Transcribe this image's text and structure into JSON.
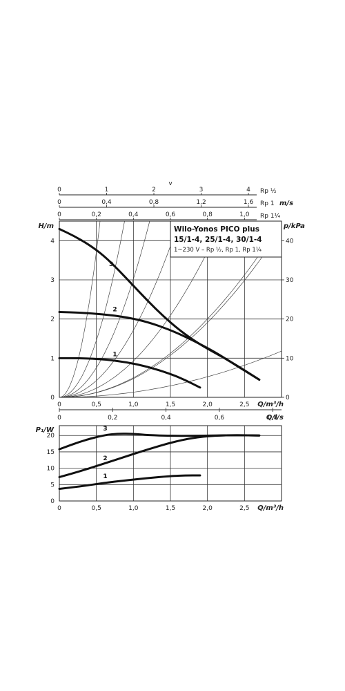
{
  "chart_data": [
    {
      "type": "line",
      "name": "pump-head-curves",
      "legend": {
        "title": "Wilo-Yonos PICO plus",
        "subtitle": "15/1-4, 25/1-4, 30/1-4",
        "note": "1~230 V – Rp ½, Rp 1, Rp 1¼",
        "placement": "top-right"
      },
      "xlabel": "Q/m³/h",
      "ylabel": "H/m",
      "y2label": "p/kPa",
      "xlim": [
        0,
        3.0
      ],
      "ylim": [
        0,
        4.5
      ],
      "y2lim": [
        0,
        45
      ],
      "xticks": [
        "0",
        "0,5",
        "1,0",
        "1,5",
        "2,0",
        "2,5"
      ],
      "xtick_values": [
        0,
        0.5,
        1.0,
        1.5,
        2.0,
        2.5
      ],
      "yticks": [
        "0",
        "1",
        "2",
        "3",
        "4"
      ],
      "ytick_values": [
        0,
        1,
        2,
        3,
        4
      ],
      "y2ticks": [
        "0",
        "10",
        "20",
        "30",
        "40"
      ],
      "y2tick_values": [
        0,
        10,
        20,
        30,
        40
      ],
      "top_axes": [
        {
          "label": "Rp ½",
          "ticks": [
            "0",
            "1",
            "2",
            "3",
            "4"
          ],
          "tick_values": [
            0,
            1,
            2,
            3,
            4
          ],
          "max": 4.7
        },
        {
          "label": "Rp 1",
          "unit": "m/s",
          "ticks": [
            "0",
            "0,4",
            "0,8",
            "1,2",
            "1,6"
          ],
          "tick_values": [
            0,
            0.4,
            0.8,
            1.2,
            1.6
          ],
          "max": 1.88
        },
        {
          "label": "Rp 1¼",
          "ticks": [
            "0",
            "0,2",
            "0,4",
            "0,6",
            "0,8",
            "1,0"
          ],
          "tick_values": [
            0,
            0.2,
            0.4,
            0.6,
            0.8,
            1.0
          ],
          "max": 1.2
        }
      ],
      "top_axis_title": "v",
      "bottom_secondary_axis": {
        "label": "Q/l/s",
        "ticks": [
          "0",
          "0,2",
          "0,4",
          "0,6",
          "0,8"
        ],
        "tick_values": [
          0,
          0.2,
          0.4,
          0.6,
          0.8
        ],
        "max": 0.833
      },
      "grid": true,
      "series": [
        {
          "name": "1",
          "x": [
            0,
            0.3,
            0.6,
            0.9,
            1.2,
            1.5,
            1.7,
            1.9
          ],
          "y": [
            1.0,
            1.0,
            0.97,
            0.9,
            0.78,
            0.6,
            0.44,
            0.25
          ]
        },
        {
          "name": "2",
          "x": [
            0,
            0.3,
            0.6,
            0.9,
            1.2,
            1.5,
            1.8,
            2.1,
            2.4,
            2.7
          ],
          "y": [
            2.18,
            2.16,
            2.12,
            2.05,
            1.92,
            1.72,
            1.46,
            1.16,
            0.8,
            0.45
          ]
        },
        {
          "name": "3",
          "x": [
            0,
            0.2,
            0.4,
            0.6,
            0.8,
            1.0,
            1.2,
            1.4,
            1.6,
            1.8,
            2.0,
            2.3,
            2.7
          ],
          "y": [
            4.3,
            4.12,
            3.9,
            3.62,
            3.25,
            2.85,
            2.45,
            2.08,
            1.75,
            1.47,
            1.24,
            0.93,
            0.45
          ]
        }
      ],
      "system_curves": [
        {
          "x_at_max": 0.55
        },
        {
          "x_at_max": 0.88
        },
        {
          "x_at_max": 1.22
        },
        {
          "x_at_max": 1.62
        },
        {
          "x_at_max": 2.2
        },
        {
          "x_at_max": 3.0
        },
        {
          "x_at_max": 3.0,
          "y_at_max": 4.3
        },
        {
          "x_at_max": 3.0,
          "y_at_max": 1.18
        }
      ]
    },
    {
      "type": "line",
      "name": "pump-power-curves",
      "xlabel": "Q/m³/h",
      "ylabel": "P₁/W",
      "xlim": [
        0,
        3.0
      ],
      "ylim": [
        0,
        23
      ],
      "xticks": [
        "0",
        "0,5",
        "1,0",
        "1,5",
        "2,0",
        "2,5"
      ],
      "xtick_values": [
        0,
        0.5,
        1.0,
        1.5,
        2.0,
        2.5
      ],
      "yticks": [
        "0",
        "5",
        "10",
        "15",
        "20"
      ],
      "ytick_values": [
        0,
        5,
        10,
        15,
        20
      ],
      "grid": true,
      "series": [
        {
          "name": "1",
          "x": [
            0,
            0.3,
            0.6,
            0.9,
            1.2,
            1.5,
            1.7,
            1.9
          ],
          "y": [
            3.7,
            4.5,
            5.5,
            6.3,
            7.0,
            7.6,
            7.8,
            7.8
          ]
        },
        {
          "name": "2",
          "x": [
            0,
            0.3,
            0.6,
            0.9,
            1.2,
            1.5,
            1.8,
            2.1,
            2.4,
            2.7
          ],
          "y": [
            7.3,
            9.2,
            11.4,
            13.6,
            15.8,
            17.8,
            19.3,
            20.0,
            20.1,
            20.0
          ]
        },
        {
          "name": "3",
          "x": [
            0,
            0.3,
            0.6,
            0.8,
            1.0,
            1.2,
            1.5,
            1.8,
            2.1,
            2.4,
            2.7
          ],
          "y": [
            15.8,
            18.3,
            20.1,
            20.6,
            20.5,
            20.1,
            19.9,
            19.9,
            20.0,
            20.1,
            20.0
          ]
        }
      ]
    }
  ]
}
